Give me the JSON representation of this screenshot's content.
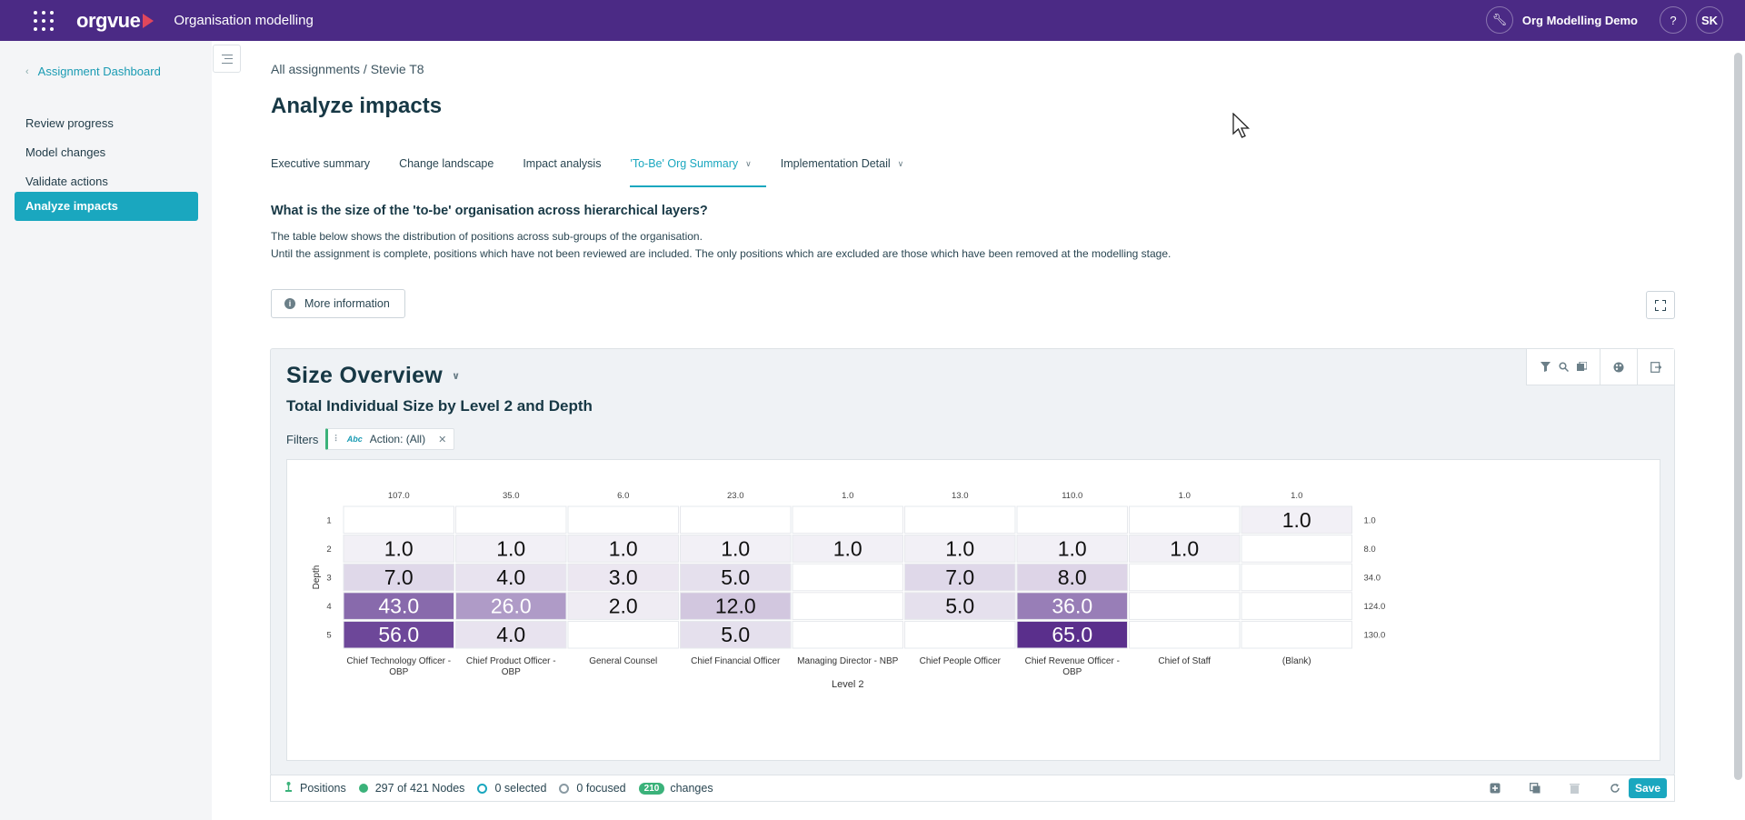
{
  "topbar": {
    "logo_text": "orgvue",
    "app_title": "Organisation modelling",
    "workspace": "Org Modelling Demo",
    "help_label": "?",
    "avatar_initials": "SK",
    "colors": {
      "bar": "#4b2a85",
      "logo_accent": "#e0475c"
    }
  },
  "sidebar": {
    "back_label": "Assignment Dashboard",
    "items": [
      {
        "label": "Review progress"
      },
      {
        "label": "Model changes"
      },
      {
        "label": "Validate actions"
      },
      {
        "label": "Analyze impacts",
        "active": true
      }
    ]
  },
  "main": {
    "breadcrumb": "All assignments / Stevie T8",
    "title": "Analyze impacts",
    "tabs": [
      {
        "label": "Executive summary"
      },
      {
        "label": "Change landscape"
      },
      {
        "label": "Impact analysis"
      },
      {
        "label": "'To-Be' Org Summary",
        "active": true,
        "dropdown": true
      },
      {
        "label": "Implementation Detail",
        "dropdown": true
      }
    ],
    "question": "What is the size of the 'to-be' organisation across hierarchical layers?",
    "description_1": "The table below shows the distribution of positions across sub-groups of the organisation.",
    "description_2": "Until the assignment is complete, positions which have not been reviewed are included. The only positions which are excluded are those which have been removed at the modelling stage.",
    "more_info_label": "More information"
  },
  "panel": {
    "title": "Size Overview",
    "subtitle": "Total Individual Size by Level 2 and Depth",
    "filters_label": "Filters",
    "filter_chip": {
      "type_tag": "Abc",
      "label": "Action: (All)"
    }
  },
  "chart_data": {
    "type": "heatmap",
    "xlabel": "Level 2",
    "ylabel": "Depth",
    "columns": [
      "Chief Technology Officer - OBP",
      "Chief Product Officer - OBP",
      "General Counsel",
      "Chief Financial Officer",
      "Managing Director - NBP",
      "Chief People Officer",
      "Chief Revenue Officer - OBP",
      "Chief of Staff",
      "(Blank)"
    ],
    "rows": [
      "1",
      "2",
      "3",
      "4",
      "5"
    ],
    "values": [
      [
        null,
        null,
        null,
        null,
        null,
        null,
        null,
        null,
        1.0
      ],
      [
        1.0,
        1.0,
        1.0,
        1.0,
        1.0,
        1.0,
        1.0,
        1.0,
        null
      ],
      [
        7.0,
        4.0,
        3.0,
        5.0,
        null,
        7.0,
        8.0,
        null,
        null
      ],
      [
        43.0,
        26.0,
        2.0,
        12.0,
        null,
        5.0,
        36.0,
        null,
        null
      ],
      [
        56.0,
        4.0,
        null,
        5.0,
        null,
        null,
        65.0,
        null,
        null
      ]
    ],
    "column_totals": [
      "107.0",
      "35.0",
      "6.0",
      "23.0",
      "1.0",
      "13.0",
      "110.0",
      "1.0",
      "1.0"
    ],
    "row_totals": [
      "1.0",
      "8.0",
      "34.0",
      "124.0",
      "130.0"
    ],
    "color_scale": {
      "low": "#f7f6f9",
      "high": "#5a2f8c"
    }
  },
  "statusbar": {
    "positions_label": "Positions",
    "nodes_label": "297 of 421 Nodes",
    "selected_label": "0 selected",
    "focused_label": "0 focused",
    "changes_count": "210",
    "changes_label": "changes",
    "save_label": "Save"
  }
}
